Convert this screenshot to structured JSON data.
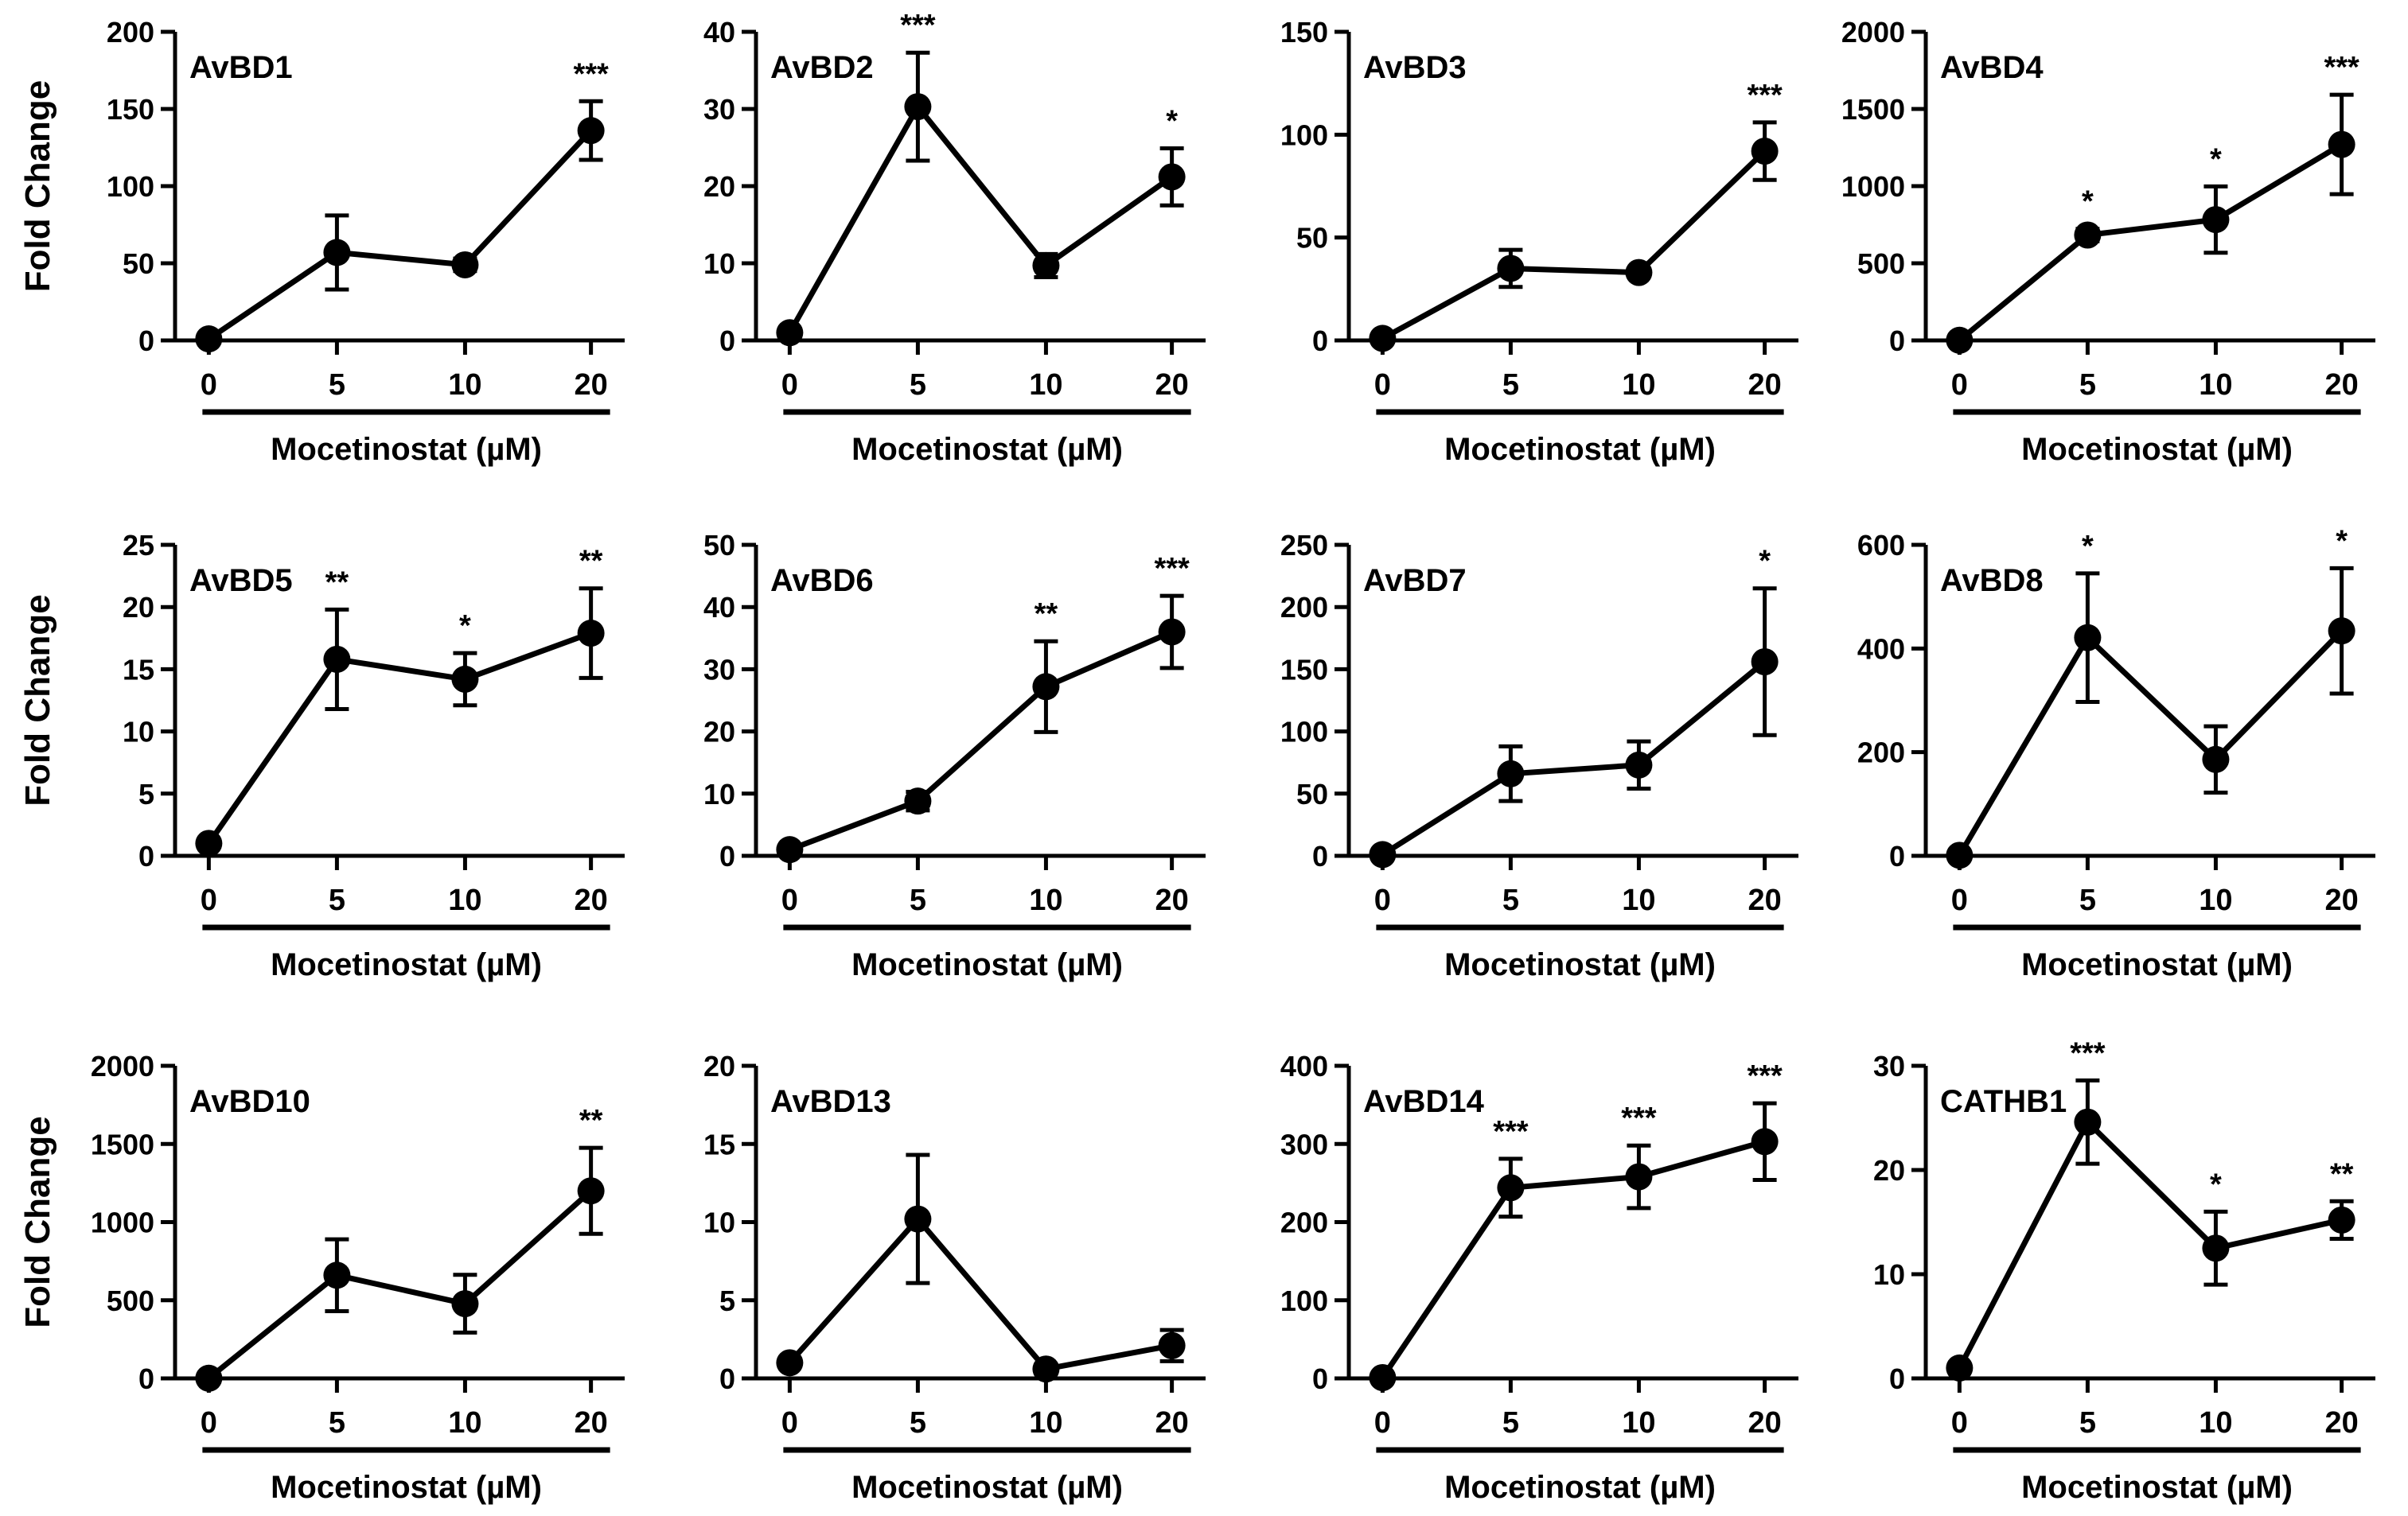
{
  "figure": {
    "x_categories": [
      "0",
      "5",
      "10",
      "20"
    ],
    "y_axis_label": "Fold Change",
    "x_axis_label": "Mocetinostat (µM)"
  },
  "chart_data": [
    {
      "type": "line",
      "title": "AvBD1",
      "categories": [
        "0",
        "5",
        "10",
        "20"
      ],
      "values": [
        1,
        57,
        49,
        136
      ],
      "errors": [
        0,
        24,
        4,
        19
      ],
      "significance": [
        "",
        "",
        "",
        "***"
      ],
      "yticks": [
        0,
        50,
        100,
        150,
        200
      ],
      "ylim": [
        0,
        200
      ],
      "ylabel": "Fold Change",
      "xlabel": "Mocetinostat (µM)"
    },
    {
      "type": "line",
      "title": "AvBD2",
      "categories": [
        "0",
        "5",
        "10",
        "20"
      ],
      "values": [
        1,
        30.3,
        9.7,
        21.2
      ],
      "errors": [
        0,
        7,
        1.5,
        3.7
      ],
      "significance": [
        "",
        "***",
        "",
        "*"
      ],
      "yticks": [
        0,
        10,
        20,
        30,
        40
      ],
      "ylim": [
        0,
        40
      ],
      "ylabel": "",
      "xlabel": "Mocetinostat (µM)"
    },
    {
      "type": "line",
      "title": "AvBD3",
      "categories": [
        "0",
        "5",
        "10",
        "20"
      ],
      "values": [
        1,
        35,
        33,
        92
      ],
      "errors": [
        0,
        9,
        2,
        14
      ],
      "significance": [
        "",
        "",
        "",
        "***"
      ],
      "yticks": [
        0,
        50,
        100,
        150
      ],
      "ylim": [
        0,
        150
      ],
      "ylabel": "",
      "xlabel": "Mocetinostat (µM)"
    },
    {
      "type": "line",
      "title": "AvBD4",
      "categories": [
        "0",
        "5",
        "10",
        "20"
      ],
      "values": [
        1,
        683,
        783,
        1270
      ],
      "errors": [
        0,
        40,
        215,
        322
      ],
      "significance": [
        "",
        "*",
        "*",
        "***"
      ],
      "yticks": [
        0,
        500,
        1000,
        1500,
        2000
      ],
      "ylim": [
        0,
        2000
      ],
      "ylabel": "",
      "xlabel": "Mocetinostat (µM)"
    },
    {
      "type": "line",
      "title": "AvBD5",
      "categories": [
        "0",
        "5",
        "10",
        "20"
      ],
      "values": [
        1,
        15.8,
        14.2,
        17.9
      ],
      "errors": [
        0,
        4,
        2.1,
        3.6
      ],
      "significance": [
        "",
        "**",
        "*",
        "**"
      ],
      "yticks": [
        0,
        5,
        10,
        15,
        20,
        25
      ],
      "ylim": [
        0,
        25
      ],
      "ylabel": "Fold Change",
      "xlabel": "Mocetinostat (µM)"
    },
    {
      "type": "line",
      "title": "AvBD6",
      "categories": [
        "0",
        "5",
        "10",
        "20"
      ],
      "values": [
        1,
        8.8,
        27.2,
        36
      ],
      "errors": [
        0,
        1.5,
        7.3,
        5.8
      ],
      "significance": [
        "",
        "",
        "**",
        "***"
      ],
      "yticks": [
        0,
        10,
        20,
        30,
        40,
        50
      ],
      "ylim": [
        0,
        50
      ],
      "ylabel": "",
      "xlabel": "Mocetinostat (µM)"
    },
    {
      "type": "line",
      "title": "AvBD7",
      "categories": [
        "0",
        "5",
        "10",
        "20"
      ],
      "values": [
        1,
        66,
        73,
        156
      ],
      "errors": [
        0,
        22,
        19,
        59
      ],
      "significance": [
        "",
        "",
        "",
        "*"
      ],
      "yticks": [
        0,
        50,
        100,
        150,
        200,
        250
      ],
      "ylim": [
        0,
        250
      ],
      "ylabel": "",
      "xlabel": "Mocetinostat (µM)"
    },
    {
      "type": "line",
      "title": "AvBD8",
      "categories": [
        "0",
        "5",
        "10",
        "20"
      ],
      "values": [
        1,
        421,
        186,
        434
      ],
      "errors": [
        0,
        124,
        64,
        121
      ],
      "significance": [
        "",
        "*",
        "",
        "*"
      ],
      "yticks": [
        0,
        200,
        400,
        600
      ],
      "ylim": [
        0,
        600
      ],
      "ylabel": "",
      "xlabel": "Mocetinostat (µM)"
    },
    {
      "type": "line",
      "title": "AvBD10",
      "categories": [
        "0",
        "5",
        "10",
        "20"
      ],
      "values": [
        1,
        660,
        478,
        1200
      ],
      "errors": [
        0,
        230,
        185,
        275
      ],
      "significance": [
        "",
        "",
        "",
        "**"
      ],
      "yticks": [
        0,
        500,
        1000,
        1500,
        2000
      ],
      "ylim": [
        0,
        2000
      ],
      "ylabel": "Fold Change",
      "xlabel": "Mocetinostat (µM)"
    },
    {
      "type": "line",
      "title": "AvBD13",
      "categories": [
        "0",
        "5",
        "10",
        "20"
      ],
      "values": [
        1,
        10.2,
        0.6,
        2.1
      ],
      "errors": [
        0,
        4.1,
        0.3,
        1
      ],
      "significance": [
        "",
        "",
        "",
        ""
      ],
      "yticks": [
        0,
        5,
        10,
        15,
        20
      ],
      "ylim": [
        0,
        20
      ],
      "ylabel": "",
      "xlabel": "Mocetinostat (µM)"
    },
    {
      "type": "line",
      "title": "AvBD14",
      "categories": [
        "0",
        "5",
        "10",
        "20"
      ],
      "values": [
        1,
        244,
        258,
        303
      ],
      "errors": [
        0,
        37,
        40,
        49
      ],
      "significance": [
        "",
        "***",
        "***",
        "***"
      ],
      "yticks": [
        0,
        100,
        200,
        300,
        400
      ],
      "ylim": [
        0,
        400
      ],
      "ylabel": "",
      "xlabel": "Mocetinostat (µM)"
    },
    {
      "type": "line",
      "title": "CATHB1",
      "categories": [
        "0",
        "5",
        "10",
        "20"
      ],
      "values": [
        1,
        24.6,
        12.5,
        15.2
      ],
      "errors": [
        0,
        4,
        3.5,
        1.8
      ],
      "significance": [
        "",
        "***",
        "*",
        "**"
      ],
      "yticks": [
        0,
        10,
        20,
        30
      ],
      "ylim": [
        0,
        30
      ],
      "ylabel": "",
      "xlabel": "Mocetinostat (µM)"
    }
  ]
}
